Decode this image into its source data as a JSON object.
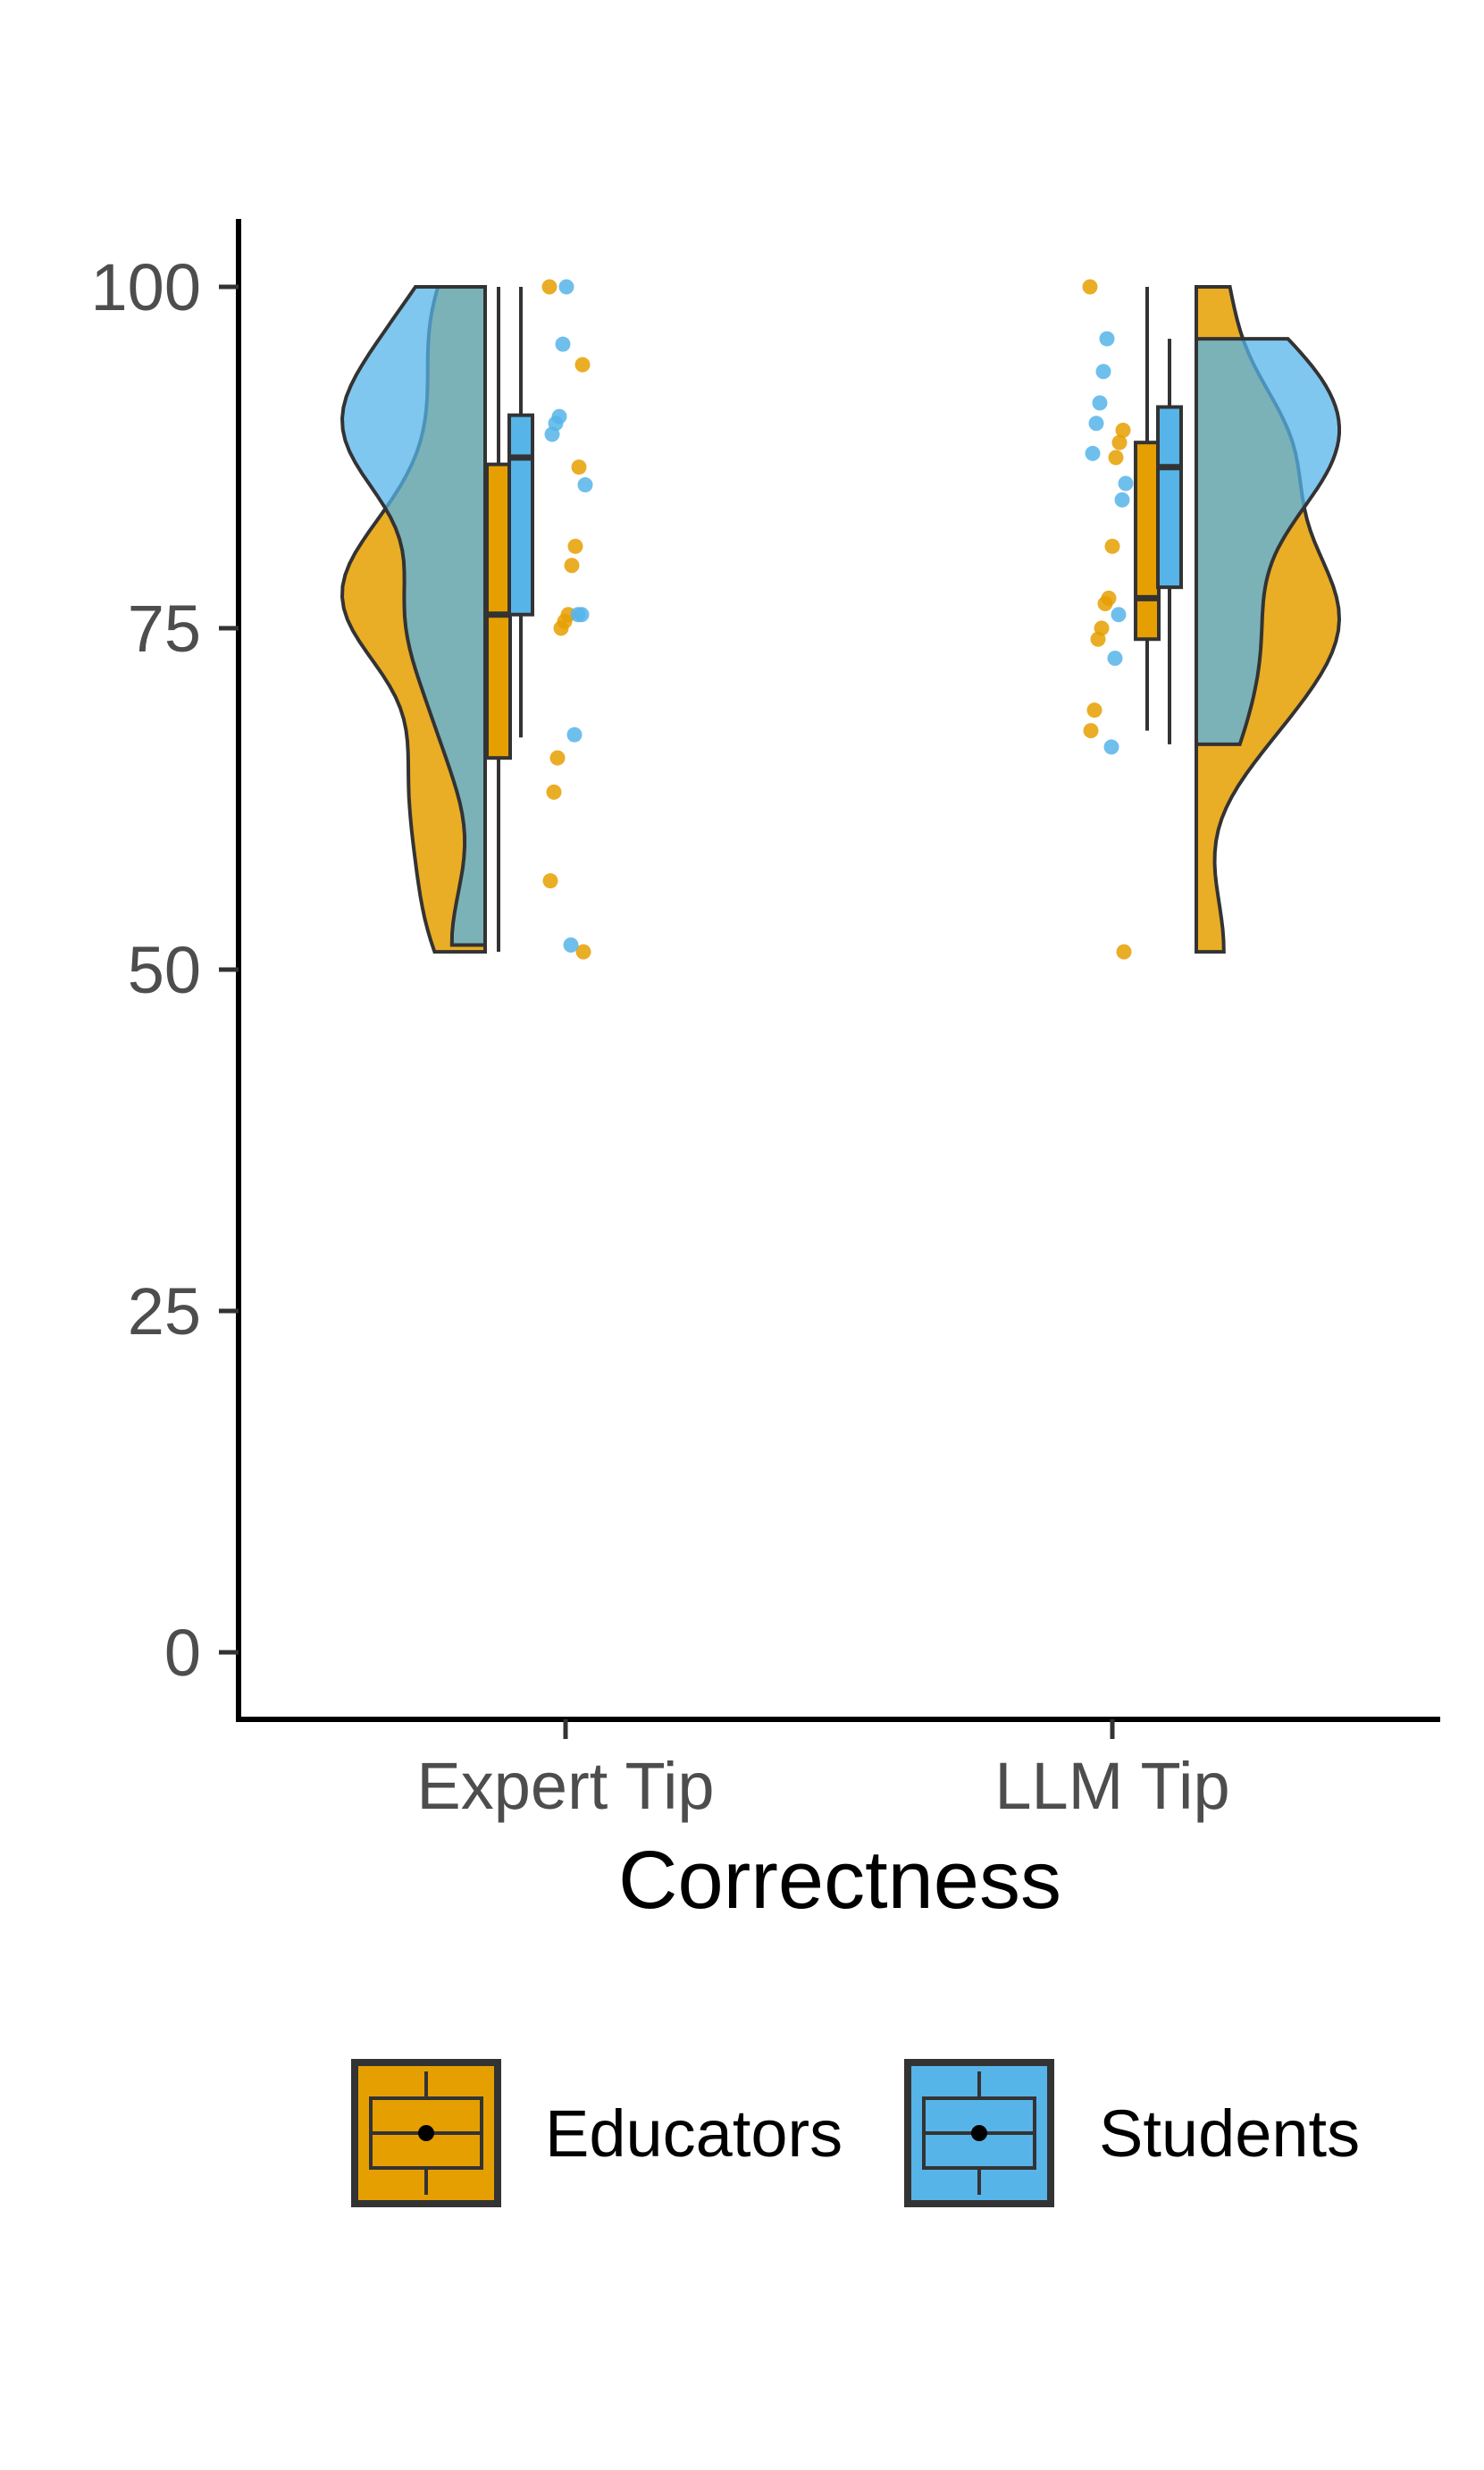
{
  "chart_data": {
    "type": "raincloud",
    "title": "",
    "xlabel": "Correctness",
    "ylabel": "",
    "categories": [
      "Expert Tip",
      "LLM Tip"
    ],
    "ylim": [
      -5,
      105
    ],
    "y_ticks": [
      0,
      25,
      50,
      75,
      100
    ],
    "grid": false,
    "legend_position": "bottom",
    "series": [
      {
        "name": "Educators",
        "color": "#E69F00",
        "groups": [
          {
            "category": "Expert Tip",
            "box": {
              "min": 51.3,
              "q1": 65.5,
              "median": 76,
              "q3": 87,
              "max": 100
            },
            "density_range": [
              51.3,
              100
            ],
            "points": [
              100,
              94.3,
              86.8,
              81,
              79.6,
              76,
              75.5,
              75,
              65.5,
              63,
              56.5,
              51.3
            ]
          },
          {
            "category": "LLM Tip",
            "box": {
              "min": 67.5,
              "q1": 74.2,
              "median": 77.2,
              "q3": 88.6,
              "max": 100
            },
            "density_range": [
              51.3,
              100
            ],
            "points": [
              100,
              89.5,
              88.6,
              87.5,
              81,
              77.2,
              76.8,
              75,
              74.2,
              69,
              67.5,
              51.3
            ]
          }
        ]
      },
      {
        "name": "Students",
        "color": "#56B4E9",
        "groups": [
          {
            "category": "Expert Tip",
            "box": {
              "min": 67,
              "q1": 76,
              "median": 87.5,
              "q3": 90.6,
              "max": 100
            },
            "density_range": [
              51.8,
              100
            ],
            "points": [
              100,
              95.8,
              90.5,
              90,
              89.2,
              85.5,
              76,
              76,
              67.2,
              51.8
            ]
          },
          {
            "category": "LLM Tip",
            "box": {
              "min": 66.5,
              "q1": 78,
              "median": 86.8,
              "q3": 91.2,
              "max": 96.2
            },
            "density_range": [
              66.5,
              96.2
            ],
            "points": [
              96.2,
              93.8,
              91.5,
              90,
              87.8,
              85.6,
              84.4,
              76,
              72.8,
              66.3
            ]
          }
        ]
      }
    ]
  }
}
